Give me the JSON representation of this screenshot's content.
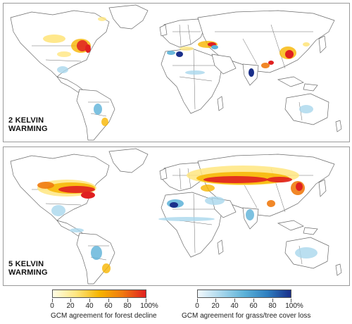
{
  "panels": [
    {
      "label_line1": "2 KELVIN",
      "label_line2": "WARMING"
    },
    {
      "label_line1": "5 KELVIN",
      "label_line2": "WARMING"
    }
  ],
  "legends": [
    {
      "caption": "GCM agreement for forest decline",
      "ticks": [
        "0",
        "20",
        "40",
        "60",
        "80",
        "100%"
      ],
      "colors": [
        "#fffde6",
        "#ffe680",
        "#f7b500",
        "#f07a10",
        "#e02020"
      ]
    },
    {
      "caption": "GCM agreement for grass/tree cover loss",
      "ticks": [
        "0",
        "20",
        "40",
        "60",
        "80",
        "100%"
      ],
      "colors": [
        "#f2f8fc",
        "#a9d7ec",
        "#5cb2d8",
        "#2e7fc0",
        "#1a2f8a"
      ]
    }
  ],
  "colors": {
    "land": "#ffffff",
    "border": "#6a6a6a",
    "panel_border": "#9a9a9a",
    "decline_high": "#e02020",
    "decline_mid": "#f7b500",
    "decline_low": "#ffe680",
    "loss_high": "#1a2f8a",
    "loss_mid": "#5cb2d8",
    "loss_low": "#a9d7ec"
  }
}
